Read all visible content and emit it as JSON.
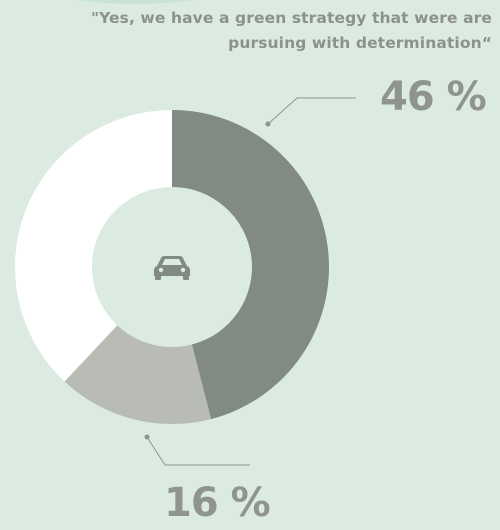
{
  "quote": "\"Yes, we have a green strategy that were are pursuing with determination“",
  "center_icon": "car-icon",
  "colors": {
    "background": "#dcebe1",
    "segment_1": "#818b81",
    "segment_2": "#b8bcb5",
    "segment_3": "#ffffff",
    "label_text": "#8f948d"
  },
  "chart_data": {
    "type": "pie",
    "donut": true,
    "categories": [
      "",
      "",
      ""
    ],
    "values": [
      46,
      16,
      38
    ],
    "data_labels": [
      "46 %",
      "16 %",
      ""
    ],
    "title": ""
  }
}
